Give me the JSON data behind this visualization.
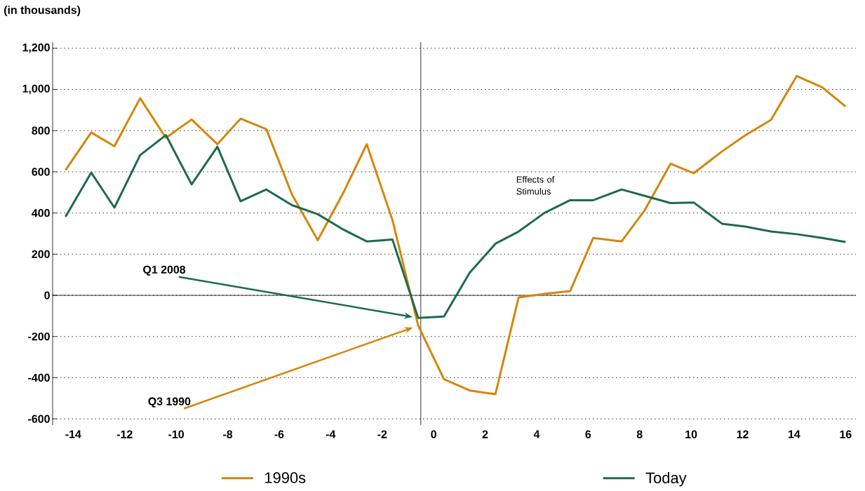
{
  "chart_data": {
    "type": "line",
    "ylabel": "(in thousands)",
    "x": [
      -14.3,
      -13.3,
      -12.4,
      -11.4,
      -10.4,
      -9.4,
      -8.4,
      -7.5,
      -6.5,
      -5.5,
      -4.5,
      -3.5,
      -2.6,
      -1.6,
      -0.6,
      0.4,
      1.4,
      2.4,
      3.3,
      4.3,
      5.3,
      6.2,
      7.3,
      8.2,
      9.2,
      10.1,
      11.2,
      12.1,
      13.1,
      14.1,
      15.1,
      16.0
    ],
    "series": [
      {
        "name": "1990s",
        "color": "#d4860b",
        "values": [
          608,
          791,
          724,
          957,
          765,
          854,
          734,
          858,
          807,
          489,
          268,
          500,
          734,
          366,
          -147,
          -407,
          -462,
          -480,
          -10,
          7,
          21,
          279,
          262,
          414,
          639,
          593,
          699,
          777,
          852,
          1065,
          1010,
          917
        ]
      },
      {
        "name": "Today",
        "color": "#1e6b4c",
        "values": [
          382,
          596,
          426,
          681,
          778,
          539,
          722,
          457,
          514,
          438,
          394,
          319,
          262,
          271,
          -110,
          -103,
          110,
          251,
          310,
          400,
          462,
          462,
          514,
          483,
          448,
          451,
          348,
          334,
          310,
          297,
          279,
          259
        ]
      }
    ],
    "annotations": [
      "Q1 2008",
      "Q3 1990",
      "Effects of Stimulus"
    ],
    "ref_lines": [
      {
        "axis": "x",
        "value": -0.5
      },
      {
        "axis": "y",
        "value": 0
      }
    ],
    "xlim": [
      -14.8,
      16.4
    ],
    "ylim": [
      -630,
      1230
    ],
    "xticks": [
      -14,
      -12,
      -10,
      -8,
      -6,
      -4,
      -2,
      0,
      2,
      4,
      6,
      8,
      10,
      12,
      14,
      16
    ],
    "yticks": [
      {
        "value": -600,
        "label": "-600"
      },
      {
        "value": -400,
        "label": "-400"
      },
      {
        "value": -200,
        "label": "-200"
      },
      {
        "value": 0,
        "label": "0"
      },
      {
        "value": 200,
        "label": "200"
      },
      {
        "value": 400,
        "label": "400"
      },
      {
        "value": 600,
        "label": "600"
      },
      {
        "value": 800,
        "label": "800"
      },
      {
        "value": 1000,
        "label": "1,000"
      },
      {
        "value": 1200,
        "label": "1,200"
      }
    ],
    "grid": "y",
    "legend": "bottom",
    "line_style": "solid",
    "marker": "none"
  }
}
